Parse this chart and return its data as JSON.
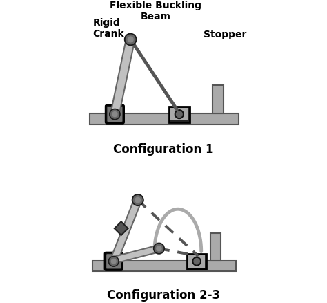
{
  "background_color": "#ffffff",
  "black": "#000000",
  "gray_dark": "#404040",
  "gray_med": "#707070",
  "gray_light": "#aaaaaa",
  "gray_rail": "#999999",
  "gray_link": "#b0b0b0",
  "config1_label": "Configuration 1",
  "config23_label": "Configuration 2-3",
  "label_flexible": "Flexible Buckling\nBeam",
  "label_rigid": "Rigid\nCrank",
  "label_stopper": "Stopper",
  "font_size_labels": 10,
  "font_size_config": 12
}
